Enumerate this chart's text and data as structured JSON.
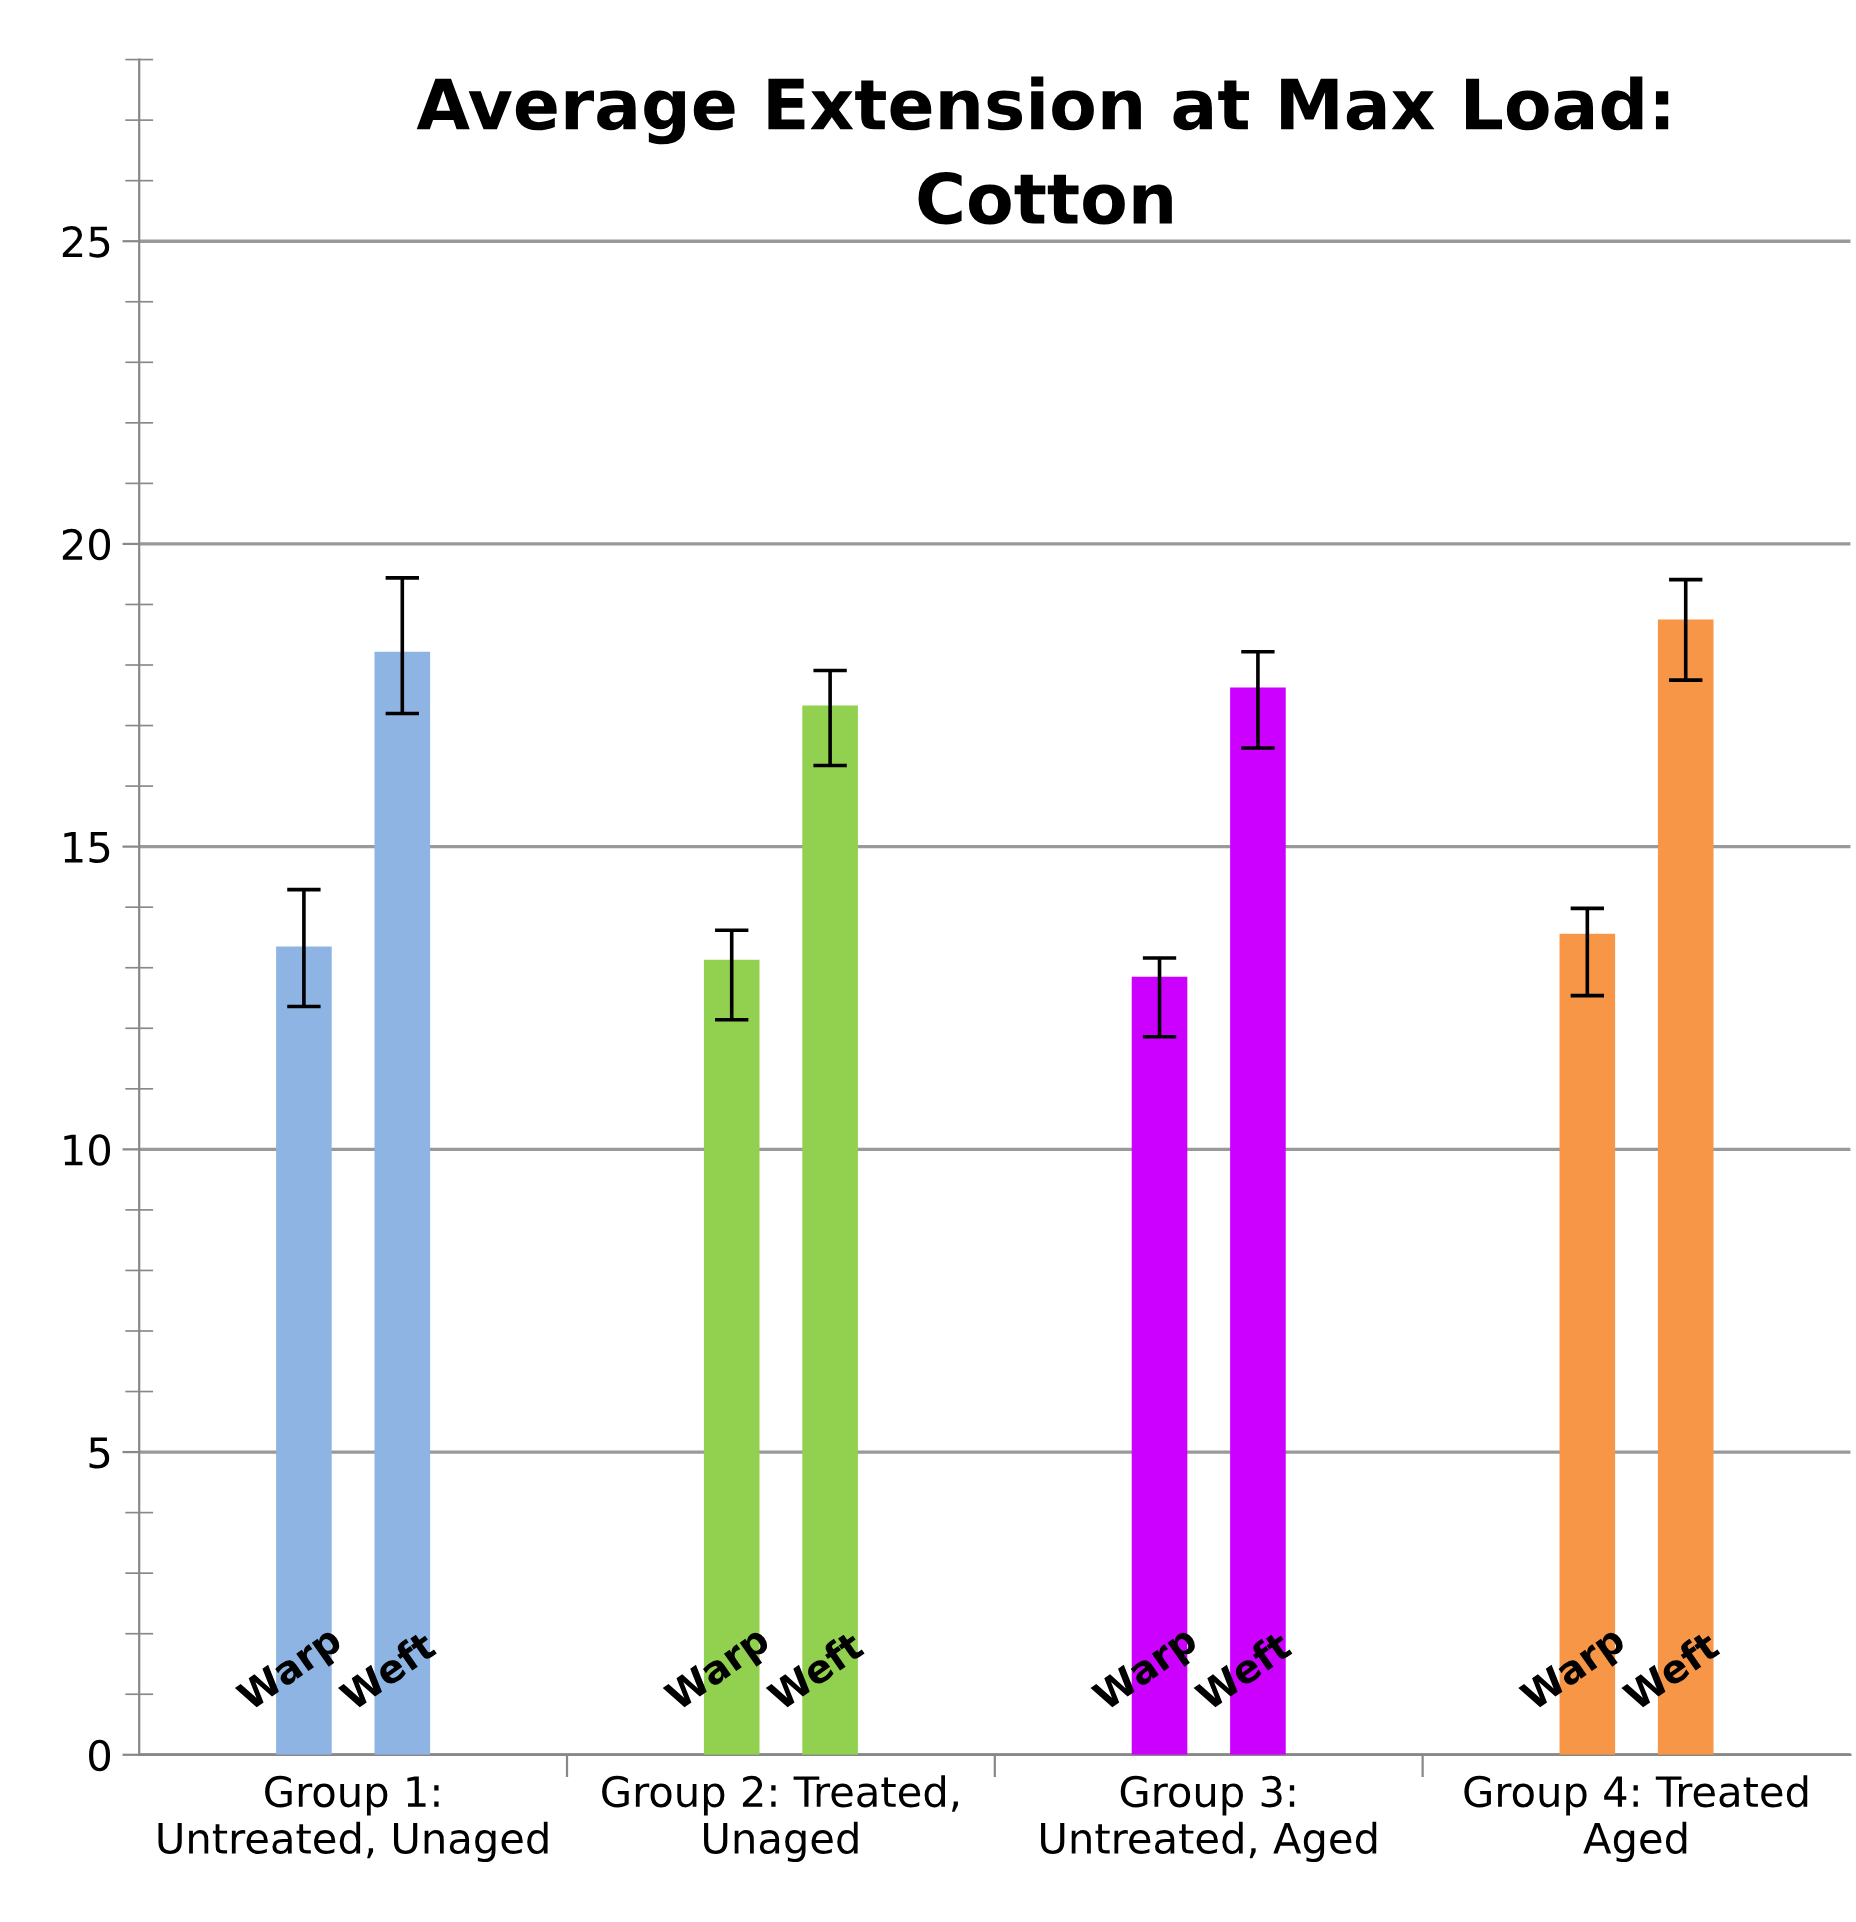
{
  "chart_data": {
    "type": "bar",
    "title": "Average Extension at Max Load:\nCotton",
    "categories": [
      "Group 1:\nUntreated, Unaged",
      "Group 2: Treated,\nUnaged",
      "Group 3:\nUntreated, Aged",
      "Group 4: Treated\nAged"
    ],
    "series": [
      {
        "name": "Warp",
        "colors": [
          "#8eb4e3",
          "#92d050",
          "#cc00ff",
          "#f79646"
        ],
        "values": [
          13.35,
          13.13,
          12.85,
          13.56
        ],
        "errors": [
          [
            12.36,
            14.29
          ],
          [
            12.14,
            13.62
          ],
          [
            11.86,
            13.16
          ],
          [
            12.54,
            13.98
          ]
        ]
      },
      {
        "name": "Weft",
        "colors": [
          "#8eb4e3",
          "#92d050",
          "#cc00ff",
          "#f79646"
        ],
        "values": [
          18.22,
          17.33,
          17.63,
          18.75
        ],
        "errors": [
          [
            17.2,
            19.44
          ],
          [
            16.34,
            17.91
          ],
          [
            16.63,
            18.22
          ],
          [
            17.75,
            19.41
          ]
        ]
      }
    ],
    "ylim": [
      0,
      28
    ],
    "yticks": [
      0,
      5,
      10,
      15,
      20,
      25
    ],
    "grid": "y",
    "legend": false
  }
}
